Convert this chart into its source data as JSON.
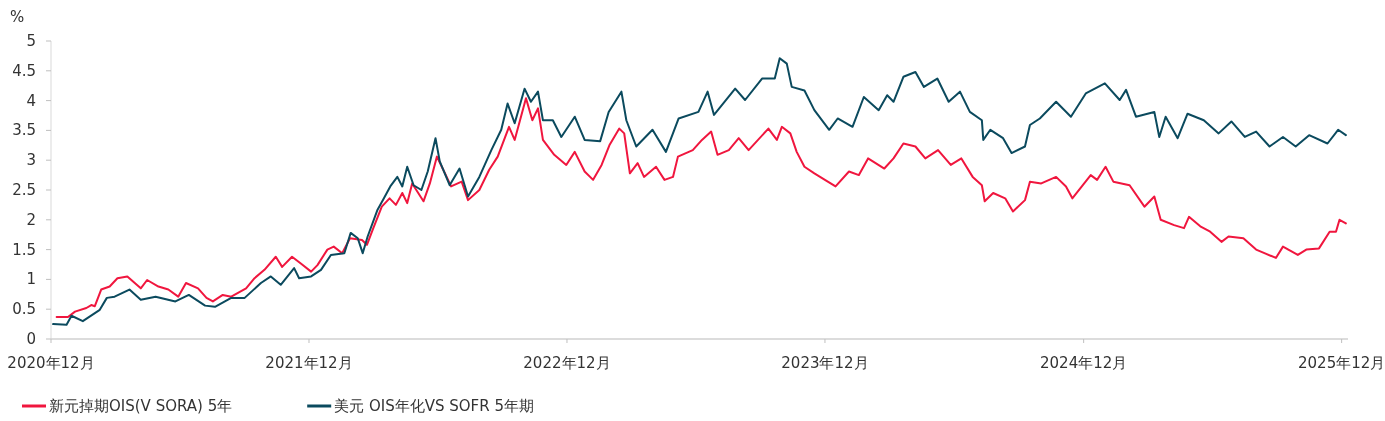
{
  "chart_data": {
    "type": "line",
    "ylabel": "%",
    "xlim": [
      "2020-12-01",
      "2025-12-10"
    ],
    "xticks": [
      {
        "value": "2020-12-01",
        "label": "2020年12月"
      },
      {
        "value": "2021-12-01",
        "label": "2021年12月"
      },
      {
        "value": "2022-12-01",
        "label": "2022年12月"
      },
      {
        "value": "2023-12-01",
        "label": "2023年12月"
      },
      {
        "value": "2024-12-01",
        "label": "2024年12月"
      },
      {
        "value": "2025-12-01",
        "label": "2025年12月"
      }
    ],
    "ylim": [
      0,
      5
    ],
    "yticks": [
      0,
      0.5,
      1,
      1.5,
      2,
      2.5,
      3,
      3.5,
      4,
      4.5,
      5
    ],
    "grid": false,
    "legend": "bottom",
    "marker": "none",
    "line_style": "solid",
    "series": [
      {
        "name": "新元掉期OIS(V SORA) 5年",
        "color": "#f0163e",
        "x": [
          "2020-12-09",
          "2020-12-25",
          "2021-01-04",
          "2021-01-20",
          "2021-01-27",
          "2021-02-01",
          "2021-02-10",
          "2021-02-22",
          "2021-03-05",
          "2021-03-19",
          "2021-04-07",
          "2021-04-16",
          "2021-05-02",
          "2021-05-16",
          "2021-05-30",
          "2021-06-10",
          "2021-06-27",
          "2021-07-09",
          "2021-07-18",
          "2021-08-01",
          "2021-08-13",
          "2021-09-03",
          "2021-09-15",
          "2021-09-29",
          "2021-10-15",
          "2021-10-24",
          "2021-11-07",
          "2021-11-19",
          "2021-12-04",
          "2021-12-13",
          "2021-12-27",
          "2022-01-05",
          "2022-01-17",
          "2022-01-28",
          "2022-02-14",
          "2022-02-21",
          "2022-03-02",
          "2022-03-14",
          "2022-03-25",
          "2022-04-03",
          "2022-04-12",
          "2022-04-19",
          "2022-04-26",
          "2022-05-12",
          "2022-05-21",
          "2022-05-31",
          "2022-06-11",
          "2022-06-20",
          "2022-07-05",
          "2022-07-14",
          "2022-07-30",
          "2022-08-13",
          "2022-08-25",
          "2022-09-10",
          "2022-09-18",
          "2022-10-04",
          "2022-10-13",
          "2022-10-21",
          "2022-10-28",
          "2022-11-13",
          "2022-11-30",
          "2022-12-12",
          "2022-12-26",
          "2023-01-07",
          "2023-01-19",
          "2023-01-30",
          "2023-02-13",
          "2023-02-20",
          "2023-02-28",
          "2023-03-11",
          "2023-03-20",
          "2023-04-06",
          "2023-04-18",
          "2023-04-30",
          "2023-05-07",
          "2023-05-28",
          "2023-06-10",
          "2023-06-23",
          "2023-07-02",
          "2023-07-18",
          "2023-08-01",
          "2023-08-15",
          "2023-09-12",
          "2023-09-24",
          "2023-10-01",
          "2023-10-13",
          "2023-10-22",
          "2023-11-02",
          "2023-11-16",
          "2023-12-05",
          "2023-12-16",
          "2024-01-04",
          "2024-01-18",
          "2024-01-31",
          "2024-02-23",
          "2024-03-07",
          "2024-03-21",
          "2024-04-07",
          "2024-04-21",
          "2024-05-09",
          "2024-05-27",
          "2024-06-11",
          "2024-06-27",
          "2024-07-10",
          "2024-07-14",
          "2024-07-26",
          "2024-08-12",
          "2024-08-23",
          "2024-09-09",
          "2024-09-16",
          "2024-10-02",
          "2024-10-23",
          "2024-11-06",
          "2024-11-15",
          "2024-12-11",
          "2024-12-20",
          "2025-01-01",
          "2025-01-12",
          "2025-02-04",
          "2025-02-25",
          "2025-03-11",
          "2025-03-20",
          "2025-04-08",
          "2025-04-22",
          "2025-04-29",
          "2025-05-15",
          "2025-05-29",
          "2025-06-14",
          "2025-06-24",
          "2025-07-15",
          "2025-08-02",
          "2025-08-30",
          "2025-09-09",
          "2025-09-30",
          "2025-10-12",
          "2025-10-30",
          "2025-11-14",
          "2025-11-23",
          "2025-11-28",
          "2025-12-07"
        ],
        "values": [
          0.37,
          0.37,
          0.46,
          0.52,
          0.57,
          0.55,
          0.83,
          0.88,
          1.02,
          1.05,
          0.85,
          0.99,
          0.88,
          0.83,
          0.71,
          0.94,
          0.85,
          0.69,
          0.63,
          0.74,
          0.71,
          0.85,
          1.02,
          1.16,
          1.38,
          1.21,
          1.38,
          1.27,
          1.13,
          1.24,
          1.5,
          1.55,
          1.44,
          1.69,
          1.66,
          1.58,
          1.86,
          2.22,
          2.36,
          2.25,
          2.45,
          2.28,
          2.61,
          2.31,
          2.61,
          3.06,
          2.79,
          2.56,
          2.64,
          2.33,
          2.5,
          2.84,
          3.06,
          3.56,
          3.34,
          4.04,
          3.67,
          3.87,
          3.34,
          3.09,
          2.92,
          3.14,
          2.81,
          2.67,
          2.92,
          3.25,
          3.53,
          3.45,
          2.78,
          2.95,
          2.72,
          2.89,
          2.67,
          2.72,
          3.06,
          3.17,
          3.34,
          3.48,
          3.09,
          3.17,
          3.37,
          3.17,
          3.53,
          3.34,
          3.56,
          3.45,
          3.14,
          2.89,
          2.78,
          2.64,
          2.56,
          2.81,
          2.75,
          3.03,
          2.86,
          3.03,
          3.28,
          3.23,
          3.03,
          3.17,
          2.92,
          3.03,
          2.72,
          2.58,
          2.31,
          2.45,
          2.36,
          2.14,
          2.33,
          2.64,
          2.61,
          2.72,
          2.56,
          2.36,
          2.75,
          2.67,
          2.89,
          2.64,
          2.58,
          2.22,
          2.39,
          2.0,
          1.91,
          1.86,
          2.05,
          1.89,
          1.8,
          1.63,
          1.72,
          1.69,
          1.5,
          1.36,
          1.55,
          1.41,
          1.5,
          1.52,
          1.8,
          1.8,
          2.0,
          1.94
        ]
      },
      {
        "name": "美元 OIS年化VS SOFR 5年期",
        "color": "#0b4a5e",
        "x": [
          "2020-12-04",
          "2020-12-23",
          "2020-12-30",
          "2021-01-15",
          "2021-02-08",
          "2021-02-18",
          "2021-03-01",
          "2021-03-22",
          "2021-04-07",
          "2021-04-28",
          "2021-05-26",
          "2021-06-14",
          "2021-07-07",
          "2021-07-21",
          "2021-08-13",
          "2021-09-01",
          "2021-09-24",
          "2021-10-08",
          "2021-10-22",
          "2021-11-10",
          "2021-11-17",
          "2021-12-04",
          "2021-12-18",
          "2022-01-01",
          "2022-01-20",
          "2022-01-29",
          "2022-02-08",
          "2022-02-15",
          "2022-02-22",
          "2022-03-08",
          "2022-03-17",
          "2022-03-26",
          "2022-04-05",
          "2022-04-12",
          "2022-04-19",
          "2022-04-28",
          "2022-05-09",
          "2022-05-18",
          "2022-05-29",
          "2022-06-04",
          "2022-06-18",
          "2022-07-02",
          "2022-07-14",
          "2022-07-30",
          "2022-08-16",
          "2022-08-30",
          "2022-09-08",
          "2022-09-18",
          "2022-10-02",
          "2022-10-11",
          "2022-10-21",
          "2022-10-28",
          "2022-11-11",
          "2022-11-23",
          "2022-12-12",
          "2022-12-26",
          "2023-01-17",
          "2023-01-29",
          "2023-02-16",
          "2023-02-23",
          "2023-03-09",
          "2023-04-01",
          "2023-04-20",
          "2023-05-08",
          "2023-06-05",
          "2023-06-18",
          "2023-06-27",
          "2023-07-27",
          "2023-08-10",
          "2023-09-03",
          "2023-09-21",
          "2023-09-28",
          "2023-10-08",
          "2023-10-15",
          "2023-11-02",
          "2023-11-16",
          "2023-12-07",
          "2023-12-19",
          "2024-01-09",
          "2024-01-25",
          "2024-02-15",
          "2024-02-27",
          "2024-03-07",
          "2024-03-21",
          "2024-04-07",
          "2024-04-19",
          "2024-05-08",
          "2024-05-24",
          "2024-06-09",
          "2024-06-23",
          "2024-07-10",
          "2024-07-12",
          "2024-07-22",
          "2024-08-09",
          "2024-08-21",
          "2024-09-09",
          "2024-09-16",
          "2024-09-30",
          "2024-10-23",
          "2024-11-13",
          "2024-12-04",
          "2024-12-31",
          "2025-01-21",
          "2025-01-30",
          "2025-02-13",
          "2025-03-11",
          "2025-03-18",
          "2025-03-27",
          "2025-04-13",
          "2025-04-27",
          "2025-05-20",
          "2025-06-10",
          "2025-06-28",
          "2025-07-17",
          "2025-08-02",
          "2025-08-21",
          "2025-09-09",
          "2025-09-27",
          "2025-10-16",
          "2025-11-11",
          "2025-11-26",
          "2025-12-07"
        ],
        "values": [
          0.25,
          0.24,
          0.39,
          0.3,
          0.49,
          0.69,
          0.71,
          0.83,
          0.66,
          0.71,
          0.63,
          0.74,
          0.56,
          0.54,
          0.69,
          0.69,
          0.94,
          1.05,
          0.91,
          1.19,
          1.02,
          1.05,
          1.16,
          1.41,
          1.44,
          1.78,
          1.69,
          1.44,
          1.72,
          2.17,
          2.36,
          2.56,
          2.72,
          2.56,
          2.89,
          2.58,
          2.5,
          2.81,
          3.37,
          2.98,
          2.58,
          2.86,
          2.39,
          2.72,
          3.17,
          3.51,
          3.95,
          3.62,
          4.2,
          3.98,
          4.15,
          3.67,
          3.67,
          3.39,
          3.73,
          3.34,
          3.32,
          3.81,
          4.15,
          3.67,
          3.23,
          3.51,
          3.14,
          3.7,
          3.81,
          4.15,
          3.76,
          4.2,
          4.01,
          4.37,
          4.37,
          4.71,
          4.62,
          4.23,
          4.17,
          3.84,
          3.51,
          3.7,
          3.56,
          4.06,
          3.84,
          4.09,
          3.98,
          4.4,
          4.48,
          4.23,
          4.37,
          3.98,
          4.15,
          3.81,
          3.67,
          3.34,
          3.51,
          3.37,
          3.12,
          3.23,
          3.59,
          3.7,
          3.98,
          3.73,
          4.12,
          4.29,
          4.01,
          4.18,
          3.73,
          3.81,
          3.39,
          3.73,
          3.37,
          3.78,
          3.67,
          3.45,
          3.65,
          3.39,
          3.48,
          3.23,
          3.39,
          3.23,
          3.42,
          3.28,
          3.51,
          3.42
        ]
      }
    ]
  }
}
